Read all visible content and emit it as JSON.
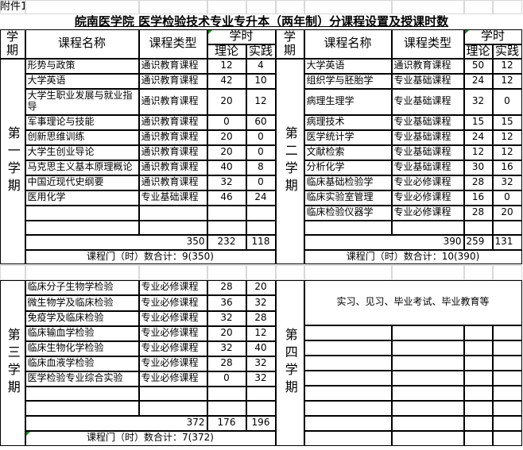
{
  "attachment_label": "附件1",
  "title": "皖南医学院  医学检验技术专业专升本（两年制）分课程设置及授课时数",
  "header": {
    "semester": "学期",
    "course_name": "课程名称",
    "course_type": "课程类型",
    "hours": "学时",
    "theory": "理论",
    "practice": "实践"
  },
  "semesters": [
    {
      "label": "第一学期",
      "courses": [
        {
          "name": "形势与政策",
          "type": "通识教育课程",
          "theory": "12",
          "practice": "4"
        },
        {
          "name": "大学英语",
          "type": "通识教育课程",
          "theory": "42",
          "practice": "10"
        },
        {
          "name": "大学生职业发展与就业指导",
          "type": "通识教育课程",
          "theory": "20",
          "practice": "12"
        },
        {
          "name": "军事理论与技能",
          "type": "通识教育课程",
          "theory": "0",
          "practice": "60"
        },
        {
          "name": "创新思维训练",
          "type": "通识教育课程",
          "theory": "20",
          "practice": "0"
        },
        {
          "name": "大学生创业导论",
          "type": "通识教育课程",
          "theory": "20",
          "practice": "0"
        },
        {
          "name": "马克思主义基本原理概论",
          "type": "通识教育课程",
          "theory": "40",
          "practice": "8"
        },
        {
          "name": "中国近现代史纲要",
          "type": "通识教育课程",
          "theory": "32",
          "practice": "0"
        },
        {
          "name": "医用化学",
          "type": "专业基础课程",
          "theory": "46",
          "practice": "24"
        }
      ],
      "total": "350",
      "total_theory": "232",
      "total_practice": "118",
      "summary": "课程门（时）数合计：9(350)"
    },
    {
      "label": "第二学期",
      "courses": [
        {
          "name": "大学英语",
          "type": "通识教育课程",
          "theory": "50",
          "practice": "12"
        },
        {
          "name": "组织学与胚胎学",
          "type": "专业基础课程",
          "theory": "24",
          "practice": "12"
        },
        {
          "name": "病理生理学",
          "type": "专业基础课程",
          "theory": "32",
          "practice": "0"
        },
        {
          "name": "病理技术",
          "type": "专业基础课程",
          "theory": "15",
          "practice": "15"
        },
        {
          "name": "医学统计学",
          "type": "专业基础课程",
          "theory": "24",
          "practice": "12"
        },
        {
          "name": "文献检索",
          "type": "专业基础课程",
          "theory": "12",
          "practice": "12"
        },
        {
          "name": "分析化学",
          "type": "专业基础课程",
          "theory": "30",
          "practice": "16"
        },
        {
          "name": "临床基础检验学",
          "type": "专业必修课程",
          "theory": "28",
          "practice": "32"
        },
        {
          "name": "临床实验室管理",
          "type": "专业必修课程",
          "theory": "16",
          "practice": "0"
        },
        {
          "name": "临床检验仪器学",
          "type": "专业必修课程",
          "theory": "28",
          "practice": "20"
        }
      ],
      "total": "390",
      "total_theory": "259",
      "total_practice": "131",
      "summary": "课程门（时）数合计：10(390)"
    },
    {
      "label": "第三学期",
      "courses": [
        {
          "name": "临床分子生物学检验",
          "type": "专业必修课程",
          "theory": "28",
          "practice": "20"
        },
        {
          "name": "微生物学及临床检验",
          "type": "专业必修课程",
          "theory": "36",
          "practice": "32"
        },
        {
          "name": "免疫学及临床检验",
          "type": "专业必修课程",
          "theory": "32",
          "practice": "28"
        },
        {
          "name": "临床输血学检验",
          "type": "专业必修课程",
          "theory": "20",
          "practice": "12"
        },
        {
          "name": "临床生物化学检验",
          "type": "专业必修课程",
          "theory": "32",
          "practice": "40"
        },
        {
          "name": "临床血液学检验",
          "type": "专业必修课程",
          "theory": "28",
          "practice": "32"
        },
        {
          "name": "医学检验专业综合实验",
          "type": "专业必修课程",
          "theory": "0",
          "practice": "32"
        }
      ],
      "total": "372",
      "total_theory": "176",
      "total_practice": "196",
      "summary": "课程门（时）数合计：7(372)"
    },
    {
      "label": "第四学期",
      "note": "实习、见习、毕业考试、毕业教育等"
    }
  ],
  "colors": {
    "grid": "#000000",
    "sheet_gridline": "#d8d8d8",
    "comment_marker": "#1a8a1a"
  }
}
